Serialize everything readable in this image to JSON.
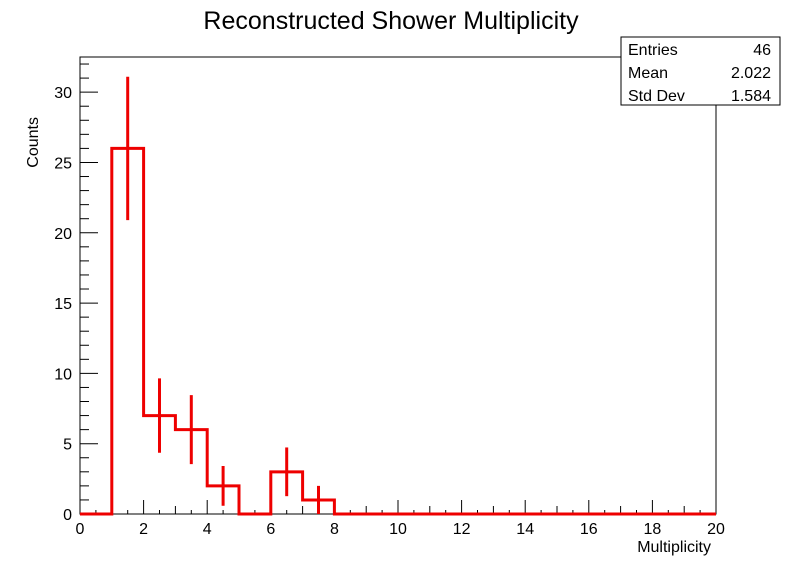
{
  "chart_data": {
    "type": "bar",
    "title": "Reconstructed Shower Multiplicity",
    "xlabel": "Multiplicity",
    "ylabel": "Counts",
    "xlim": [
      0,
      20
    ],
    "ylim": [
      0,
      32.5
    ],
    "x_ticks": [
      "0",
      "2",
      "4",
      "6",
      "8",
      "10",
      "12",
      "14",
      "16",
      "18",
      "20"
    ],
    "y_ticks": [
      "0",
      "5",
      "10",
      "15",
      "20",
      "25",
      "30"
    ],
    "bin_width": 1,
    "bin_low_edges": [
      0,
      1,
      2,
      3,
      4,
      5,
      6,
      7,
      8,
      9,
      10,
      11,
      12,
      13,
      14,
      15,
      16,
      17,
      18,
      19
    ],
    "values": [
      0,
      26,
      7,
      6,
      2,
      0,
      3,
      1,
      0,
      0,
      0,
      0,
      0,
      0,
      0,
      0,
      0,
      0,
      0,
      0
    ],
    "line_color": "#ee0000",
    "grid": false,
    "stats": {
      "rows": [
        {
          "label": "Entries",
          "value": "46"
        },
        {
          "label": "Mean",
          "value": "2.022"
        },
        {
          "label": "Std Dev",
          "value": "1.584"
        }
      ]
    }
  }
}
